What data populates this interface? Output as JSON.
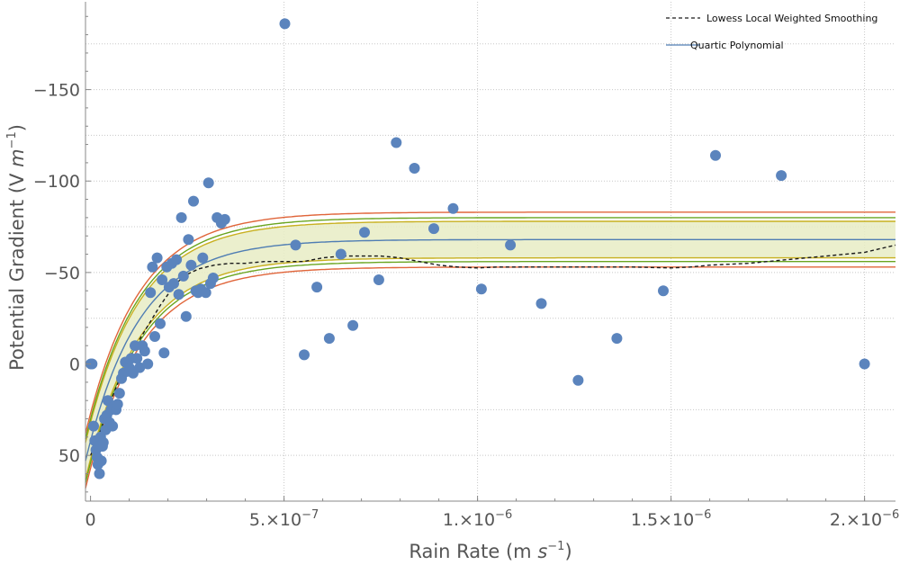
{
  "chart_data": {
    "type": "scatter",
    "xlabel": {
      "main": "Rain Rate (m ",
      "unit_base": "s",
      "unit_exp": "−1",
      "close": ")"
    },
    "ylabel": {
      "main": "Potential Gradient (V ",
      "unit_base": "m",
      "unit_exp": "−1",
      "close": ")"
    },
    "xlim": [
      -1.3e-08,
      2.08e-06
    ],
    "ylim": [
      75,
      -198
    ],
    "y_axis_reversed": true,
    "x_ticks": [
      {
        "value": 0,
        "mantissa": "0",
        "exp": ""
      },
      {
        "value": 5e-07,
        "mantissa": "5.×10",
        "exp": "−7"
      },
      {
        "value": 1e-06,
        "mantissa": "1.×10",
        "exp": "−6"
      },
      {
        "value": 1.5e-06,
        "mantissa": "1.5×10",
        "exp": "−6"
      },
      {
        "value": 2e-06,
        "mantissa": "2.×10",
        "exp": "−6"
      }
    ],
    "y_ticks": [
      {
        "value": -150,
        "label": "−150"
      },
      {
        "value": -100,
        "label": "−100"
      },
      {
        "value": -50,
        "label": "−50"
      },
      {
        "value": 0,
        "label": "0"
      },
      {
        "value": 50,
        "label": "50"
      }
    ],
    "grid": true,
    "legend": {
      "position": "top-right",
      "entries": [
        {
          "label": "Lowess Local Weighted Smoothing",
          "style": "dashed",
          "color": "#1a1a1a"
        },
        {
          "label": "Quartic Polynomial",
          "style": "solid",
          "color": "#4f7db3"
        }
      ]
    },
    "colors": {
      "points": "#5b84bd",
      "fit_line": "#4f7db3",
      "lowess": "#1a1a1a",
      "inner_band_fill": "#e8ecc4",
      "inner_band_edge": "#c8b020",
      "middle_band_edge": "#6aa520",
      "outer_band_edge": "#e0653a"
    },
    "fit_model": {
      "a": -68,
      "b": 110,
      "k": 7300000.0,
      "note_sd": [
        10,
        12,
        15
      ]
    },
    "series": [
      {
        "name": "Observations",
        "points": [
          [
            1e-09,
            0
          ],
          [
            4e-09,
            0
          ],
          [
            8e-09,
            34
          ],
          [
            1.1e-08,
            42
          ],
          [
            1.4e-08,
            47
          ],
          [
            1.7e-08,
            51
          ],
          [
            1.9e-08,
            55
          ],
          [
            2.1e-08,
            45
          ],
          [
            2.3e-08,
            60
          ],
          [
            2.6e-08,
            40
          ],
          [
            2.8e-08,
            53
          ],
          [
            3.1e-08,
            45
          ],
          [
            3.3e-08,
            43
          ],
          [
            3.6e-08,
            30
          ],
          [
            3.9e-08,
            36
          ],
          [
            4.2e-08,
            28
          ],
          [
            4.5e-08,
            20
          ],
          [
            4.9e-08,
            32
          ],
          [
            5.3e-08,
            25
          ],
          [
            5.7e-08,
            34
          ],
          [
            6.1e-08,
            23
          ],
          [
            6.6e-08,
            25
          ],
          [
            7e-08,
            22
          ],
          [
            7.5e-08,
            16
          ],
          [
            8e-08,
            8
          ],
          [
            8.5e-08,
            5
          ],
          [
            9e-08,
            -1
          ],
          [
            9.5e-08,
            4
          ],
          [
            1e-07,
            2
          ],
          [
            1.05e-07,
            -3
          ],
          [
            1.1e-07,
            5
          ],
          [
            1.15e-07,
            -10
          ],
          [
            1.2e-07,
            -3
          ],
          [
            1.27e-07,
            2
          ],
          [
            1.34e-07,
            -10
          ],
          [
            1.4e-07,
            -7
          ],
          [
            1.48e-07,
            0
          ],
          [
            1.55e-07,
            -39
          ],
          [
            1.6e-07,
            -53
          ],
          [
            1.66e-07,
            -15
          ],
          [
            1.72e-07,
            -58
          ],
          [
            1.8e-07,
            -22
          ],
          [
            1.85e-07,
            -46
          ],
          [
            1.9e-07,
            -6
          ],
          [
            1.97e-07,
            -53
          ],
          [
            2.03e-07,
            -42
          ],
          [
            2.1e-07,
            -55
          ],
          [
            2.15e-07,
            -44
          ],
          [
            2.22e-07,
            -57
          ],
          [
            2.28e-07,
            -38
          ],
          [
            2.35e-07,
            -80
          ],
          [
            2.4e-07,
            -48
          ],
          [
            2.47e-07,
            -26
          ],
          [
            2.53e-07,
            -68
          ],
          [
            2.6e-07,
            -54
          ],
          [
            2.66e-07,
            -89
          ],
          [
            2.72e-07,
            -40
          ],
          [
            2.78e-07,
            -39
          ],
          [
            2.85e-07,
            -41
          ],
          [
            2.9e-07,
            -58
          ],
          [
            2.98e-07,
            -39
          ],
          [
            3.05e-07,
            -99
          ],
          [
            3.1e-07,
            -44
          ],
          [
            3.17e-07,
            -47
          ],
          [
            3.27e-07,
            -80
          ],
          [
            3.38e-07,
            -77
          ],
          [
            3.47e-07,
            -79
          ],
          [
            5.02e-07,
            -186
          ],
          [
            5.3e-07,
            -65
          ],
          [
            5.52e-07,
            -5
          ],
          [
            5.85e-07,
            -42
          ],
          [
            6.17e-07,
            -14
          ],
          [
            6.47e-07,
            -60
          ],
          [
            6.78e-07,
            -21
          ],
          [
            7.08e-07,
            -72
          ],
          [
            7.45e-07,
            -46
          ],
          [
            7.9e-07,
            -121
          ],
          [
            8.37e-07,
            -107
          ],
          [
            8.87e-07,
            -74
          ],
          [
            9.37e-07,
            -85
          ],
          [
            1.01e-06,
            -41
          ],
          [
            1.085e-06,
            -65
          ],
          [
            1.165e-06,
            -33
          ],
          [
            1.26e-06,
            9
          ],
          [
            1.36e-06,
            -14
          ],
          [
            1.48e-06,
            -40
          ],
          [
            1.615e-06,
            -114
          ],
          [
            1.785e-06,
            -103
          ],
          [
            2e-06,
            0
          ]
        ]
      }
    ],
    "lowess_curve": [
      [
        0,
        50
      ],
      [
        2e-08,
        40
      ],
      [
        4e-08,
        28
      ],
      [
        6e-08,
        16
      ],
      [
        8e-08,
        6
      ],
      [
        1e-07,
        -3
      ],
      [
        1.2e-07,
        -11
      ],
      [
        1.4e-07,
        -18
      ],
      [
        1.6e-07,
        -25
      ],
      [
        1.8e-07,
        -32
      ],
      [
        2e-07,
        -38
      ],
      [
        2.2e-07,
        -44
      ],
      [
        2.5e-07,
        -49
      ],
      [
        2.8e-07,
        -52
      ],
      [
        3.2e-07,
        -54
      ],
      [
        3.6e-07,
        -55
      ],
      [
        4e-07,
        -55
      ],
      [
        4.5e-07,
        -56
      ],
      [
        5e-07,
        -56
      ],
      [
        5.5e-07,
        -56
      ],
      [
        6e-07,
        -58
      ],
      [
        6.5e-07,
        -59
      ],
      [
        7e-07,
        -59
      ],
      [
        7.5e-07,
        -59
      ],
      [
        8e-07,
        -58
      ],
      [
        8.5e-07,
        -56
      ],
      [
        9e-07,
        -54
      ],
      [
        9.5e-07,
        -53
      ],
      [
        1e-06,
        -52.5
      ],
      [
        1.05e-06,
        -53
      ],
      [
        1.1e-06,
        -53
      ],
      [
        1.2e-06,
        -53
      ],
      [
        1.3e-06,
        -53
      ],
      [
        1.4e-06,
        -53
      ],
      [
        1.5e-06,
        -52.5
      ],
      [
        1.55e-06,
        -53
      ],
      [
        1.6e-06,
        -54
      ],
      [
        1.7e-06,
        -55
      ],
      [
        1.8e-06,
        -57
      ],
      [
        1.9e-06,
        -59
      ],
      [
        2e-06,
        -61
      ],
      [
        2.08e-06,
        -65
      ]
    ]
  }
}
